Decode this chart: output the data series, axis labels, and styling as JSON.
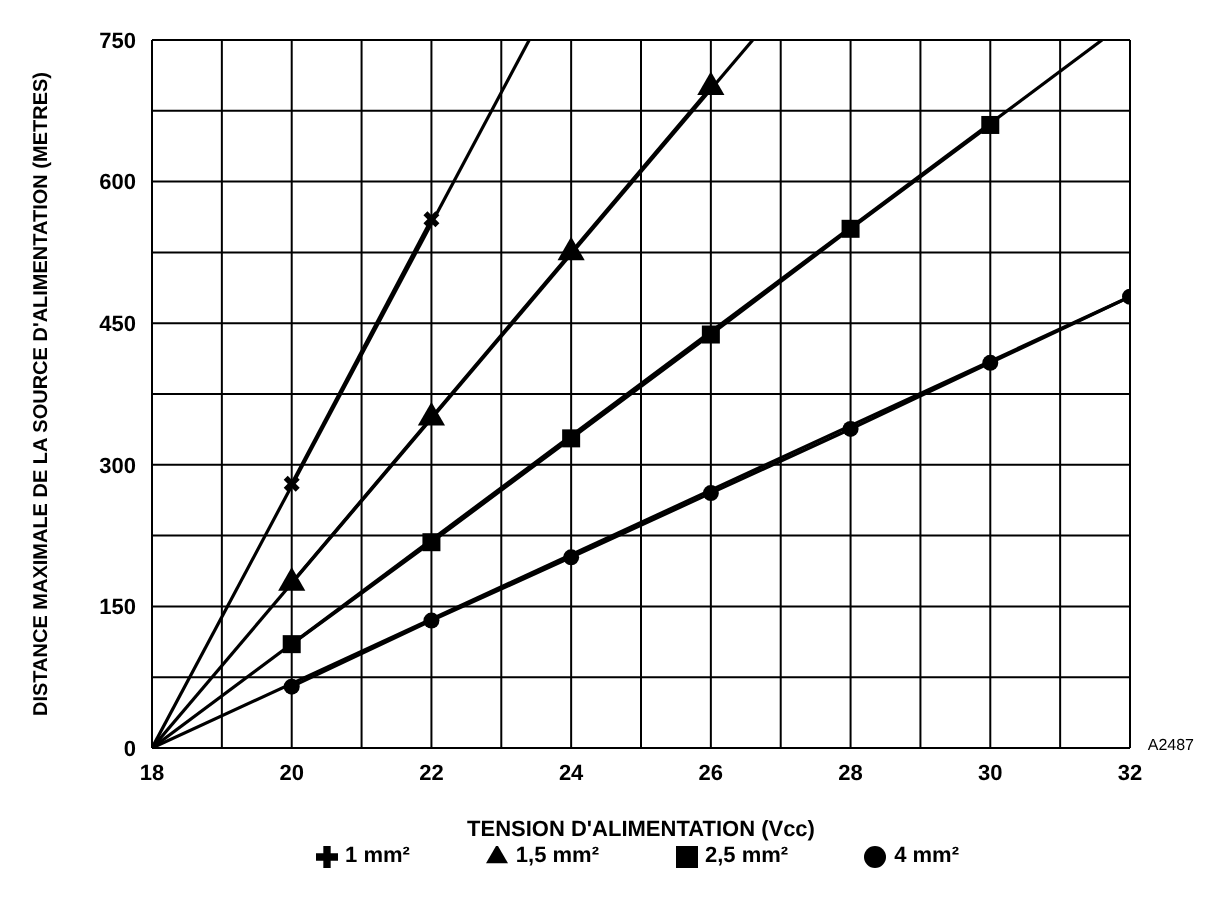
{
  "chart_data": {
    "type": "line",
    "xlabel": "TENSION D'ALIMENTATION (Vcc)",
    "ylabel": "DISTANCE MAXIMALE DE LA SOURCE D'ALIMENTATION (METRES)",
    "xlim": [
      18,
      32
    ],
    "ylim": [
      0,
      750
    ],
    "xticks": [
      18,
      {
        "value": 19,
        "label": null
      },
      20,
      {
        "value": 21,
        "label": null
      },
      22,
      {
        "value": 23,
        "label": null
      },
      24,
      {
        "value": 25,
        "label": null
      },
      26,
      {
        "value": 27,
        "label": null
      },
      28,
      {
        "value": 29,
        "label": null
      },
      30,
      {
        "value": 31,
        "label": null
      },
      32
    ],
    "yticks": [
      0,
      {
        "value": 75,
        "label": null
      },
      150,
      {
        "value": 225,
        "label": null
      },
      300,
      {
        "value": 375,
        "label": null
      },
      450,
      {
        "value": 525,
        "label": null
      },
      600,
      {
        "value": 675,
        "label": null
      },
      750
    ],
    "grid": true,
    "legend": "bottom",
    "line_style": "solid",
    "annotations": [
      "A2487"
    ],
    "series": [
      {
        "name": "1 mm²",
        "color": "#000000",
        "marker": "cross",
        "x": [
          20,
          22
        ],
        "values": [
          280,
          560
        ]
      },
      {
        "name": "1,5 mm²",
        "color": "#000000",
        "marker": "triangle",
        "x": [
          20,
          22,
          24,
          26
        ],
        "values": [
          175,
          350,
          525,
          700
        ]
      },
      {
        "name": "2,5 mm²",
        "color": "#000000",
        "marker": "square",
        "x": [
          20,
          22,
          24,
          26,
          28,
          30
        ],
        "values": [
          110,
          218,
          328,
          438,
          550,
          660
        ]
      },
      {
        "name": "4 mm²",
        "color": "#000000",
        "marker": "circle",
        "x": [
          20,
          22,
          24,
          26,
          28,
          30,
          32
        ],
        "values": [
          65,
          135,
          202,
          270,
          338,
          408,
          478
        ]
      },
      {
        "type": "line",
        "color": "#000000",
        "marker": "none",
        "x": [
          18,
          23.4
        ],
        "values": [
          0,
          750
        ]
      },
      {
        "type": "line",
        "color": "#000000",
        "marker": "none",
        "x": [
          18,
          26.6
        ],
        "values": [
          0,
          750
        ]
      },
      {
        "type": "line",
        "color": "#000000",
        "marker": "none",
        "x": [
          18,
          31.6
        ],
        "values": [
          0,
          750
        ]
      },
      {
        "type": "line",
        "color": "#000000",
        "marker": "none",
        "x": [
          18,
          32
        ],
        "values": [
          0,
          478
        ]
      }
    ]
  }
}
